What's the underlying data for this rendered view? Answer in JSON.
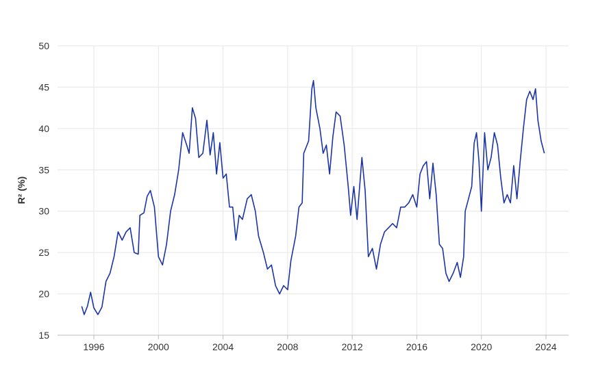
{
  "chart_data": {
    "type": "line",
    "title": "",
    "xlabel": "",
    "ylabel": "R² (%)",
    "xlim": [
      1994.3,
      2025.0
    ],
    "ylim": [
      15,
      50
    ],
    "grid": true,
    "x_ticks": [
      1996,
      2000,
      2004,
      2008,
      2012,
      2016,
      2020,
      2024
    ],
    "y_ticks": [
      15,
      20,
      25,
      30,
      35,
      40,
      45,
      50
    ],
    "line_color": "#1a33a6",
    "series": [
      {
        "x": [
          1995.25,
          1995.4,
          1995.6,
          1995.8,
          1996.0,
          1996.25,
          1996.5,
          1996.75,
          1997.0,
          1997.25,
          1997.5,
          1997.75,
          1998.0,
          1998.25,
          1998.5,
          1998.75,
          1998.85,
          1999.1,
          1999.3,
          1999.5,
          1999.75,
          2000.0,
          2000.25,
          2000.5,
          2000.75,
          2001.0,
          2001.25,
          2001.5,
          2001.75,
          2001.9,
          2002.1,
          2002.3,
          2002.5,
          2002.75,
          2003.0,
          2003.2,
          2003.4,
          2003.6,
          2003.8,
          2004.0,
          2004.2,
          2004.4,
          2004.6,
          2004.8,
          2005.0,
          2005.2,
          2005.5,
          2005.75,
          2006.0,
          2006.2,
          2006.5,
          2006.75,
          2007.0,
          2007.25,
          2007.5,
          2007.75,
          2008.0,
          2008.2,
          2008.5,
          2008.7,
          2008.9,
          2009.0,
          2009.3,
          2009.5,
          2009.6,
          2009.75,
          2010.0,
          2010.2,
          2010.4,
          2010.6,
          2010.8,
          2011.0,
          2011.25,
          2011.5,
          2011.75,
          2011.9,
          2012.1,
          2012.3,
          2012.6,
          2012.8,
          2013.0,
          2013.25,
          2013.5,
          2013.75,
          2014.0,
          2014.25,
          2014.5,
          2014.75,
          2015.0,
          2015.25,
          2015.5,
          2015.75,
          2016.0,
          2016.2,
          2016.4,
          2016.6,
          2016.8,
          2017.0,
          2017.2,
          2017.4,
          2017.6,
          2017.8,
          2018.0,
          2018.25,
          2018.5,
          2018.7,
          2018.9,
          2019.0,
          2019.2,
          2019.4,
          2019.55,
          2019.7,
          2019.85,
          2020.0,
          2020.2,
          2020.4,
          2020.6,
          2020.8,
          2021.0,
          2021.2,
          2021.4,
          2021.6,
          2021.8,
          2022.0,
          2022.2,
          2022.4,
          2022.6,
          2022.8,
          2023.0,
          2023.2,
          2023.35,
          2023.5,
          2023.7,
          2023.9
        ],
        "y": [
          18.5,
          17.5,
          18.5,
          20.2,
          18.3,
          17.5,
          18.4,
          21.5,
          22.5,
          24.5,
          27.5,
          26.5,
          27.5,
          28,
          25,
          24.8,
          29.5,
          29.8,
          31.8,
          32.5,
          30.5,
          24.5,
          23.5,
          26,
          30,
          32,
          35,
          39.5,
          38,
          37,
          42.5,
          41.2,
          36.5,
          37,
          41,
          36.8,
          39.5,
          34.5,
          38.3,
          34,
          34.5,
          30.5,
          30.5,
          26.5,
          29.5,
          29,
          31.5,
          32,
          30,
          27,
          25,
          23,
          23.5,
          21,
          20,
          21,
          20.5,
          24,
          27,
          30.5,
          31,
          37,
          38.5,
          44.8,
          45.8,
          42.5,
          40,
          37,
          38,
          34.5,
          39,
          42,
          41.5,
          38,
          33,
          29.5,
          33,
          29,
          36.5,
          32.5,
          24.5,
          25.5,
          23,
          26,
          27.5,
          28,
          28.5,
          28,
          30.5,
          30.5,
          31,
          32,
          30.5,
          34.5,
          35.5,
          36,
          31.5,
          35.8,
          32,
          26,
          25.5,
          22.5,
          21.5,
          22.5,
          23.8,
          22,
          24.5,
          30,
          31.5,
          33,
          38.2,
          39.5,
          36,
          30,
          39.5,
          35,
          36.5,
          39.5,
          38,
          34,
          31,
          32,
          31,
          35.5,
          31.5,
          36,
          40,
          43.5,
          44.5,
          43.5,
          44.8,
          41,
          38.5,
          37
        ]
      }
    ]
  }
}
